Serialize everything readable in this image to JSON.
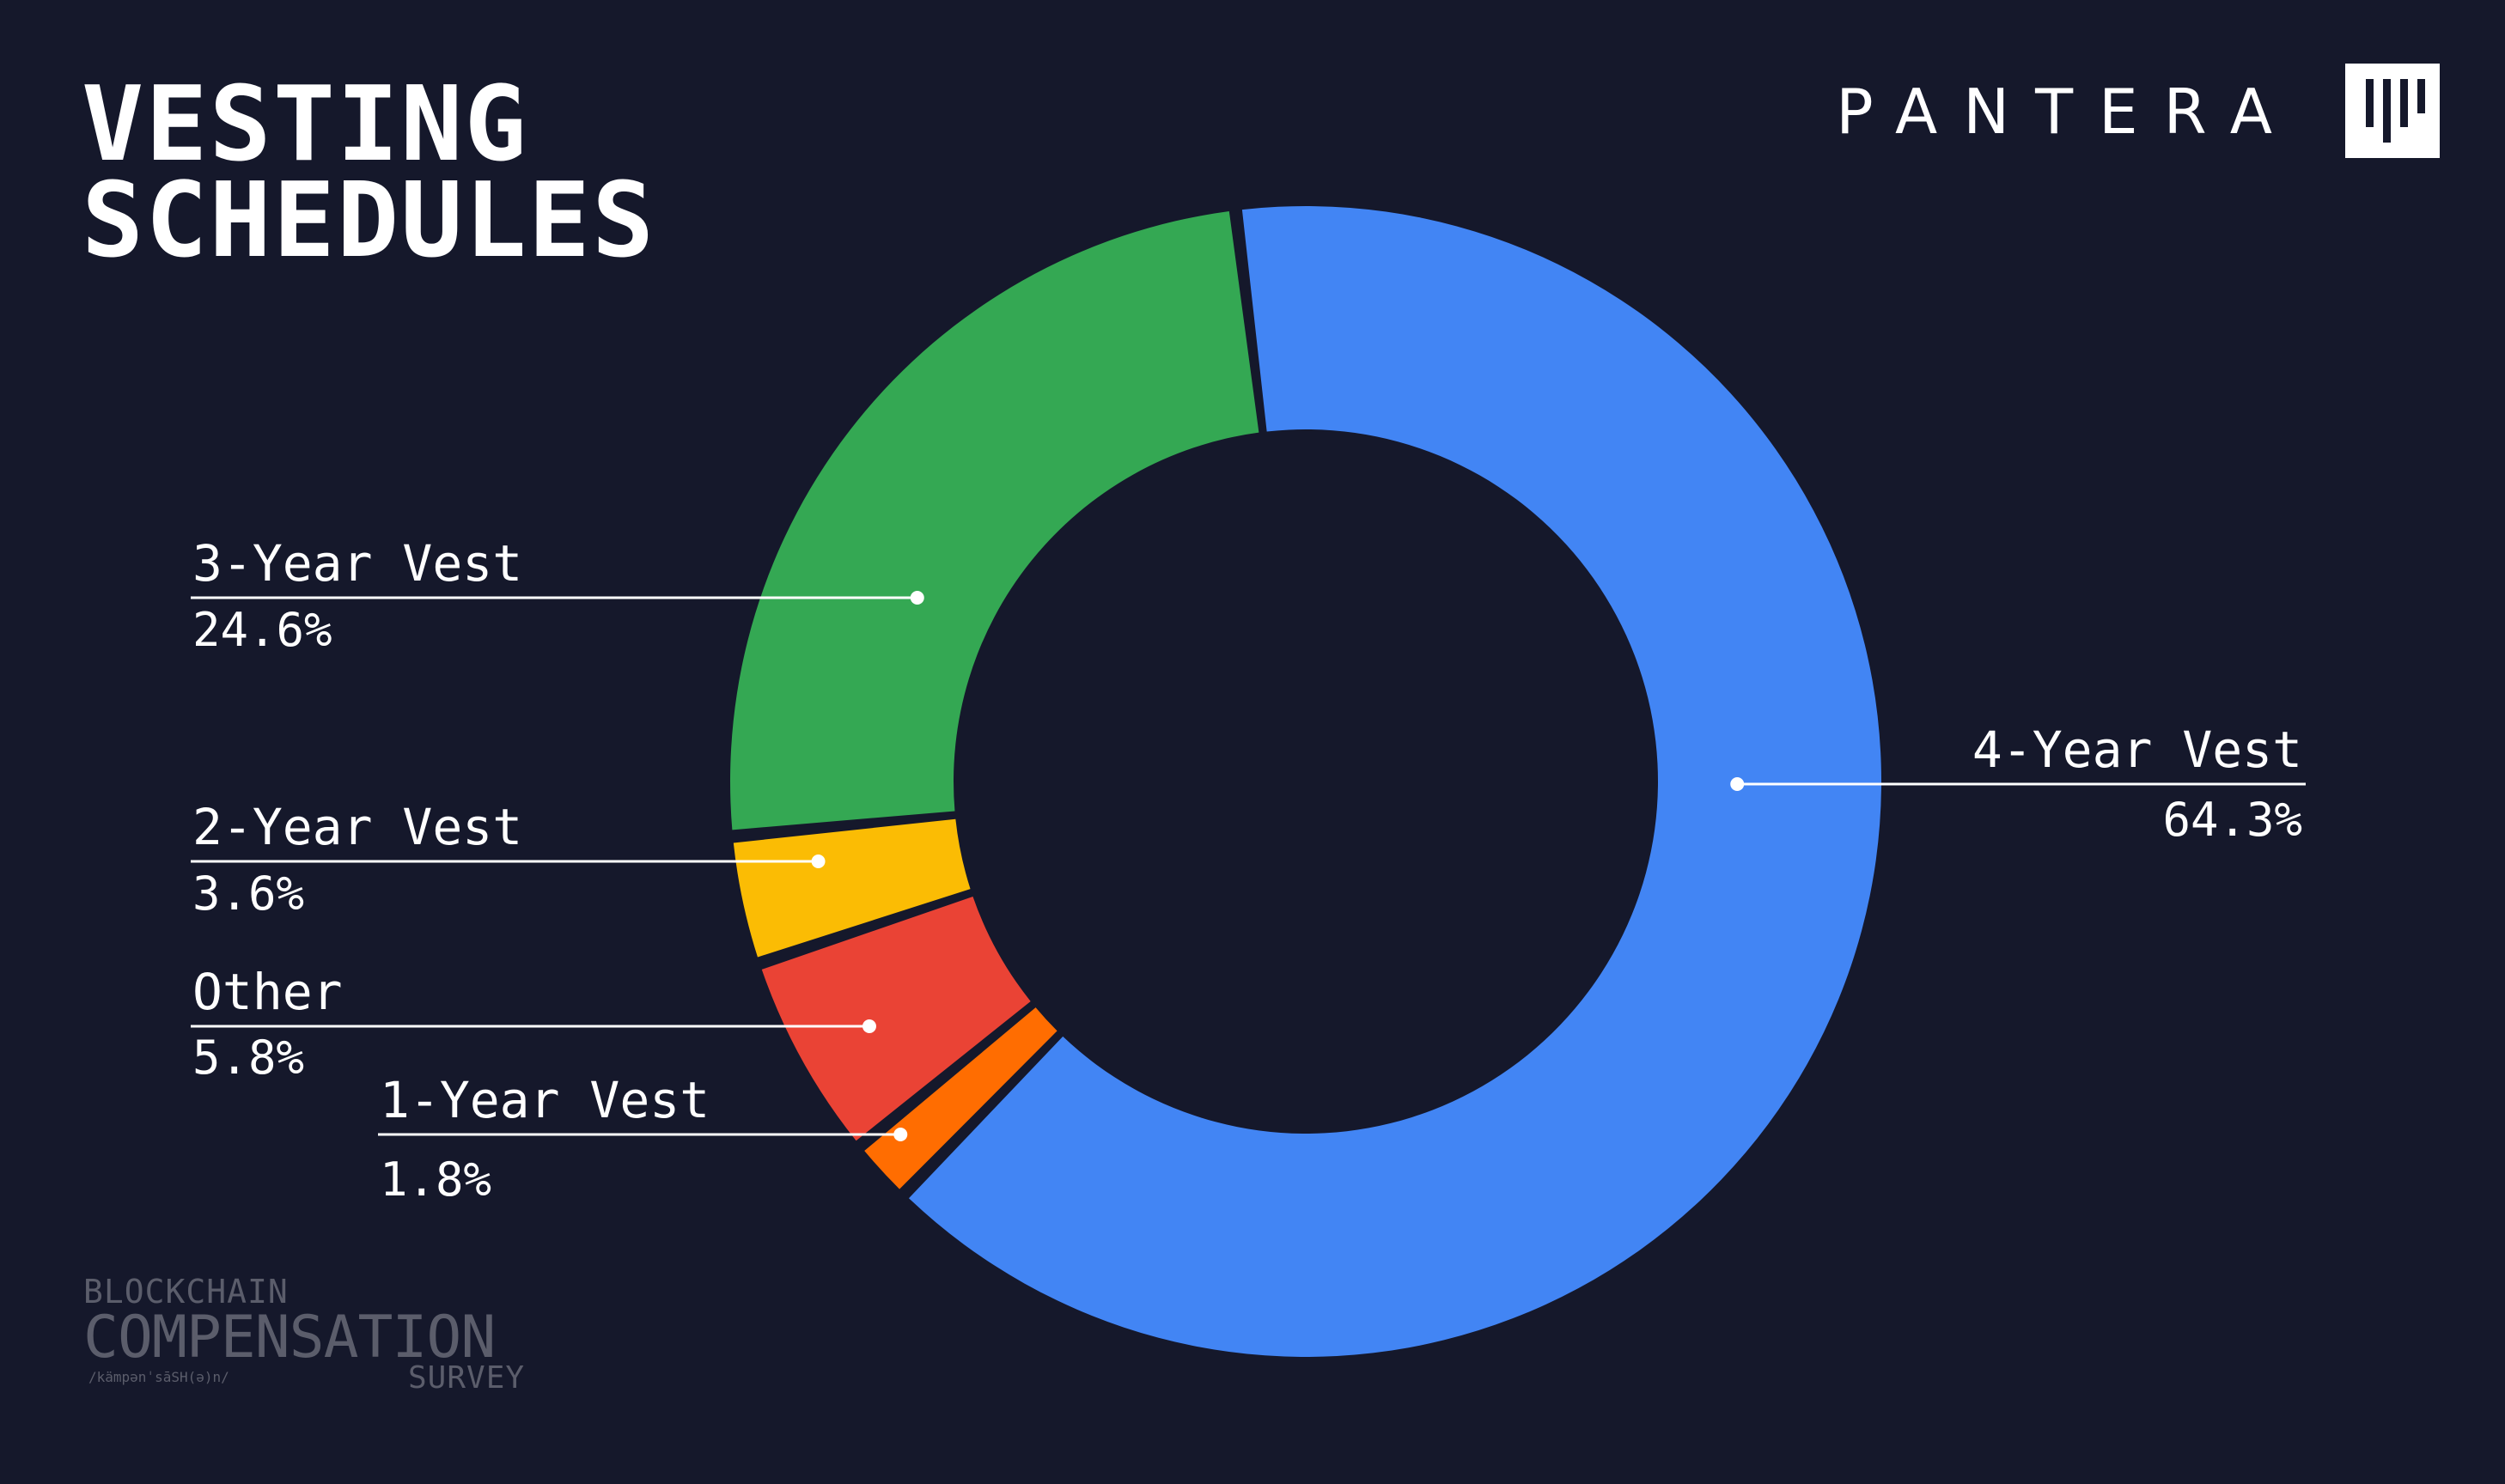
{
  "header": {
    "title_line1": "VESTING",
    "title_line2": "SCHEDULES"
  },
  "brand": {
    "name": "PANTERA",
    "logo_icon": "pantera-logo-icon"
  },
  "chart_data": {
    "type": "pie",
    "variant": "donut",
    "title": "VESTING SCHEDULES",
    "slices": [
      {
        "label": "4-Year Vest",
        "value": 64.3,
        "display": "64.3%",
        "color": "#4285f4"
      },
      {
        "label": "1-Year Vest",
        "value": 1.8,
        "display": "1.8%",
        "color": "#ff6d01"
      },
      {
        "label": "Other",
        "value": 5.8,
        "display": "5.8%",
        "color": "#ea4335"
      },
      {
        "label": "2-Year Vest",
        "value": 3.6,
        "display": "3.6%",
        "color": "#fbbc04"
      },
      {
        "label": "3-Year Vest",
        "value": 24.6,
        "display": "24.6%",
        "color": "#34a853"
      }
    ],
    "legend": "callout labels",
    "background": "#15182b"
  },
  "footer": {
    "survey_top": "BLOCKCHAIN",
    "survey_main": "COMPENSATION",
    "survey_phonetic": "/kämpənˈsāSH(ə)n/",
    "survey_bottom": "SURVEY"
  }
}
